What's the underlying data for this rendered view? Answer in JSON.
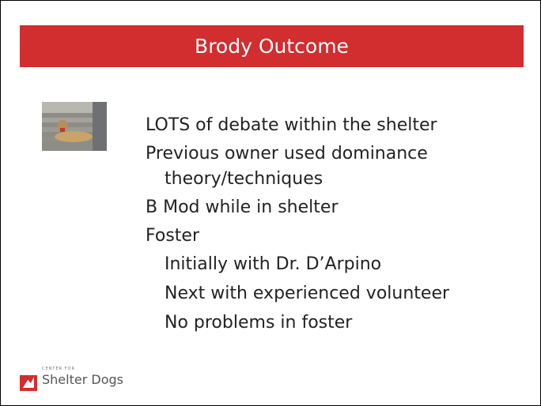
{
  "header": {
    "title": "Brody Outcome"
  },
  "bullets": [
    {
      "text": "LOTS of debate within the shelter"
    },
    {
      "text": "Previous owner used dominance theory/techniques"
    },
    {
      "text": "B Mod while in shelter"
    },
    {
      "text": "Foster",
      "items": [
        "Initially with Dr. D’Arpino",
        "Next with experienced volunteer",
        "No problems in foster"
      ]
    }
  ],
  "logo": {
    "small": "CENTER FOR",
    "name": "Shelter Dogs"
  }
}
